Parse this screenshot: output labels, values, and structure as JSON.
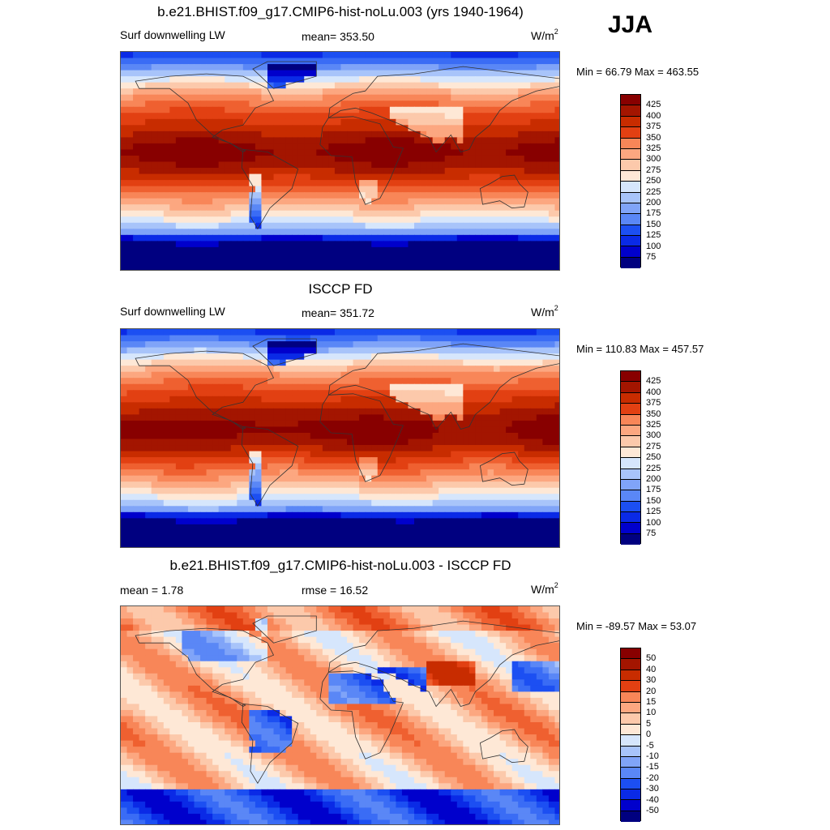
{
  "season": "JJA",
  "units_base": "W/m",
  "units_exp": "2",
  "colors": {
    "fills": [
      "#000080",
      "#0000cc",
      "#0a2ae6",
      "#1c4ff2",
      "#3a6cf5",
      "#5a87f6",
      "#80a4f8",
      "#a8c4fa",
      "#d6e6fc",
      "#fee8d6",
      "#fcc9ab",
      "#fca780",
      "#f88658",
      "#ef6030",
      "#e24012",
      "#c82c00",
      "#a31500",
      "#880000"
    ],
    "coast": "#333333"
  },
  "panels": [
    {
      "title": "b.e21.BHIST.f09_g17.CMIP6-hist-noLu.003 (yrs 1940-1964)",
      "left_label": "Surf downwelling LW",
      "center_label": "mean= 353.50",
      "minmax": "Min =  66.79 Max = 463.55",
      "levels": [
        "425",
        "400",
        "375",
        "350",
        "325",
        "300",
        "275",
        "250",
        "225",
        "200",
        "175",
        "150",
        "125",
        "100",
        "75"
      ],
      "field": "model"
    },
    {
      "title": "ISCCP FD",
      "left_label": "Surf downwelling LW",
      "center_label": "mean= 351.72",
      "minmax": "Min = 110.83 Max = 457.57",
      "levels": [
        "425",
        "400",
        "375",
        "350",
        "325",
        "300",
        "275",
        "250",
        "225",
        "200",
        "175",
        "150",
        "125",
        "100",
        "75"
      ],
      "field": "obs"
    },
    {
      "title": "b.e21.BHIST.f09_g17.CMIP6-hist-noLu.003 - ISCCP FD",
      "left_label": "mean =   1.78",
      "center_label": "rmse =  16.52",
      "minmax": "Min = -89.57 Max =  53.07",
      "levels": [
        "50",
        "40",
        "30",
        "20",
        "15",
        "10",
        "5",
        "0",
        "-5",
        "-10",
        "-15",
        "-20",
        "-30",
        "-40",
        "-50"
      ],
      "field": "diff"
    }
  ]
}
